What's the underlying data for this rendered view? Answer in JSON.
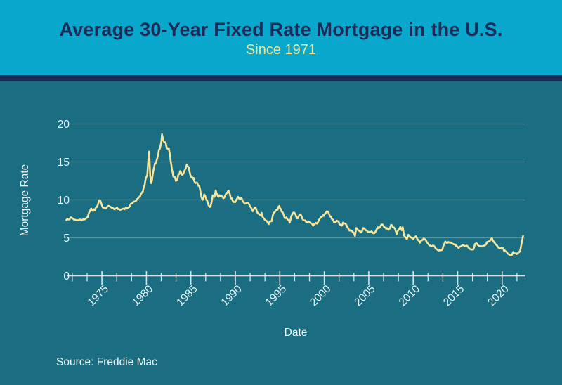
{
  "header": {
    "title": "Average 30-Year Fixed Rate Mortgage in the U.S.",
    "subtitle": "Since 1971"
  },
  "footer": {
    "source": "Source: Freddie Mac"
  },
  "colors": {
    "header_bg": "#09A7CB",
    "divider_navy": "#1F2957",
    "chart_bg": "#1B6E81",
    "line_yellow": "#F6E59C",
    "title_navy": "#1E2A58",
    "subtitle_yellow": "#EDE795",
    "axis_text": "#ECF5F8",
    "grid": "#A8CED8",
    "axis_line": "#E8F2F5"
  },
  "chart_data": {
    "type": "line",
    "title": "Average 30-Year Fixed Rate Mortgage in the U.S.",
    "subtitle": "Since 1971",
    "xlabel": "Date",
    "ylabel": "Mortgage Rate",
    "source": "Freddie Mac",
    "x_range": [
      1971,
      2022.4
    ],
    "ylim": [
      0,
      20
    ],
    "yticks": [
      0,
      5,
      10,
      15,
      20
    ],
    "xticks_major": [
      1975,
      1980,
      1985,
      1990,
      1995,
      2000,
      2005,
      2010,
      2015,
      2020
    ],
    "minor_ticks_per_major_interval": 2,
    "grid": "horizontal-only",
    "legend": "none",
    "series": [
      {
        "name": "Mortgage Rate (%)",
        "points": [
          [
            1971.0,
            7.33
          ],
          [
            1971.2,
            7.42
          ],
          [
            1971.5,
            7.7
          ],
          [
            1971.75,
            7.5
          ],
          [
            1972.0,
            7.37
          ],
          [
            1972.3,
            7.3
          ],
          [
            1972.6,
            7.4
          ],
          [
            1972.9,
            7.44
          ],
          [
            1973.1,
            7.45
          ],
          [
            1973.4,
            7.75
          ],
          [
            1973.65,
            8.5
          ],
          [
            1973.8,
            8.85
          ],
          [
            1974.0,
            8.55
          ],
          [
            1974.2,
            8.65
          ],
          [
            1974.45,
            9.1
          ],
          [
            1974.7,
            9.96
          ],
          [
            1974.9,
            9.6
          ],
          [
            1975.1,
            9.0
          ],
          [
            1975.35,
            8.85
          ],
          [
            1975.6,
            9.1
          ],
          [
            1975.85,
            9.15
          ],
          [
            1976.1,
            8.95
          ],
          [
            1976.4,
            8.75
          ],
          [
            1976.7,
            9.0
          ],
          [
            1976.9,
            8.8
          ],
          [
            1977.1,
            8.7
          ],
          [
            1977.4,
            8.85
          ],
          [
            1977.7,
            9.0
          ],
          [
            1977.9,
            8.95
          ],
          [
            1978.1,
            9.1
          ],
          [
            1978.4,
            9.55
          ],
          [
            1978.7,
            9.8
          ],
          [
            1978.95,
            10.1
          ],
          [
            1979.15,
            10.35
          ],
          [
            1979.4,
            10.8
          ],
          [
            1979.6,
            11.1
          ],
          [
            1979.8,
            11.9
          ],
          [
            1979.95,
            12.9
          ],
          [
            1980.1,
            13.3
          ],
          [
            1980.22,
            15.3
          ],
          [
            1980.3,
            16.35
          ],
          [
            1980.42,
            13.2
          ],
          [
            1980.55,
            12.2
          ],
          [
            1980.7,
            13.3
          ],
          [
            1980.85,
            14.2
          ],
          [
            1980.95,
            14.8
          ],
          [
            1981.1,
            15.0
          ],
          [
            1981.25,
            15.6
          ],
          [
            1981.4,
            16.6
          ],
          [
            1981.5,
            16.7
          ],
          [
            1981.62,
            17.3
          ],
          [
            1981.75,
            18.63
          ],
          [
            1981.85,
            18.1
          ],
          [
            1981.95,
            17.7
          ],
          [
            1982.1,
            17.6
          ],
          [
            1982.25,
            17.0
          ],
          [
            1982.4,
            16.7
          ],
          [
            1982.52,
            16.8
          ],
          [
            1982.65,
            16.0
          ],
          [
            1982.8,
            14.6
          ],
          [
            1982.95,
            13.6
          ],
          [
            1983.1,
            13.0
          ],
          [
            1983.25,
            12.8
          ],
          [
            1983.4,
            12.6
          ],
          [
            1983.6,
            13.4
          ],
          [
            1983.8,
            13.8
          ],
          [
            1983.95,
            13.4
          ],
          [
            1984.1,
            13.4
          ],
          [
            1984.3,
            13.9
          ],
          [
            1984.55,
            14.67
          ],
          [
            1984.75,
            14.3
          ],
          [
            1984.95,
            13.2
          ],
          [
            1985.1,
            13.1
          ],
          [
            1985.3,
            12.9
          ],
          [
            1985.5,
            12.2
          ],
          [
            1985.7,
            12.25
          ],
          [
            1985.95,
            11.8
          ],
          [
            1986.1,
            10.9
          ],
          [
            1986.3,
            10.0
          ],
          [
            1986.5,
            10.7
          ],
          [
            1986.7,
            10.2
          ],
          [
            1986.9,
            9.7
          ],
          [
            1987.05,
            9.2
          ],
          [
            1987.2,
            9.1
          ],
          [
            1987.45,
            10.6
          ],
          [
            1987.65,
            10.4
          ],
          [
            1987.8,
            11.26
          ],
          [
            1987.95,
            10.7
          ],
          [
            1988.1,
            10.4
          ],
          [
            1988.3,
            10.5
          ],
          [
            1988.55,
            10.4
          ],
          [
            1988.75,
            10.3
          ],
          [
            1988.95,
            10.8
          ],
          [
            1989.1,
            10.9
          ],
          [
            1989.25,
            11.2
          ],
          [
            1989.5,
            10.2
          ],
          [
            1989.7,
            9.9
          ],
          [
            1989.9,
            9.75
          ],
          [
            1990.1,
            10.0
          ],
          [
            1990.3,
            10.4
          ],
          [
            1990.55,
            10.1
          ],
          [
            1990.75,
            10.1
          ],
          [
            1990.95,
            9.7
          ],
          [
            1991.1,
            9.5
          ],
          [
            1991.3,
            9.6
          ],
          [
            1991.55,
            9.4
          ],
          [
            1991.75,
            9.0
          ],
          [
            1991.95,
            8.5
          ],
          [
            1992.1,
            8.8
          ],
          [
            1992.3,
            8.9
          ],
          [
            1992.55,
            8.2
          ],
          [
            1992.75,
            8.0
          ],
          [
            1992.95,
            8.3
          ],
          [
            1993.1,
            7.7
          ],
          [
            1993.3,
            7.4
          ],
          [
            1993.55,
            7.2
          ],
          [
            1993.75,
            6.8
          ],
          [
            1993.95,
            7.2
          ],
          [
            1994.1,
            7.2
          ],
          [
            1994.3,
            8.3
          ],
          [
            1994.55,
            8.6
          ],
          [
            1994.75,
            8.7
          ],
          [
            1994.95,
            9.2
          ],
          [
            1995.1,
            8.8
          ],
          [
            1995.3,
            8.4
          ],
          [
            1995.55,
            7.6
          ],
          [
            1995.75,
            7.7
          ],
          [
            1995.95,
            7.35
          ],
          [
            1996.1,
            7.0
          ],
          [
            1996.3,
            7.9
          ],
          [
            1996.5,
            8.3
          ],
          [
            1996.7,
            8.2
          ],
          [
            1996.9,
            7.6
          ],
          [
            1997.1,
            7.8
          ],
          [
            1997.3,
            8.1
          ],
          [
            1997.55,
            7.5
          ],
          [
            1997.75,
            7.3
          ],
          [
            1997.95,
            7.1
          ],
          [
            1998.1,
            7.05
          ],
          [
            1998.3,
            7.1
          ],
          [
            1998.55,
            6.9
          ],
          [
            1998.75,
            6.6
          ],
          [
            1998.95,
            6.85
          ],
          [
            1999.1,
            6.9
          ],
          [
            1999.3,
            7.1
          ],
          [
            1999.55,
            7.6
          ],
          [
            1999.75,
            7.8
          ],
          [
            1999.95,
            7.9
          ],
          [
            2000.1,
            8.2
          ],
          [
            2000.3,
            8.5
          ],
          [
            2000.55,
            8.1
          ],
          [
            2000.75,
            7.8
          ],
          [
            2000.95,
            7.4
          ],
          [
            2001.1,
            7.0
          ],
          [
            2001.3,
            7.1
          ],
          [
            2001.5,
            7.2
          ],
          [
            2001.7,
            6.8
          ],
          [
            2001.95,
            6.6
          ],
          [
            2002.1,
            7.0
          ],
          [
            2002.3,
            6.9
          ],
          [
            2002.55,
            6.5
          ],
          [
            2002.75,
            6.1
          ],
          [
            2002.95,
            6.0
          ],
          [
            2003.1,
            5.9
          ],
          [
            2003.3,
            5.7
          ],
          [
            2003.45,
            5.25
          ],
          [
            2003.6,
            6.3
          ],
          [
            2003.8,
            6.0
          ],
          [
            2003.95,
            5.9
          ],
          [
            2004.1,
            5.7
          ],
          [
            2004.4,
            6.3
          ],
          [
            2004.65,
            6.0
          ],
          [
            2004.9,
            5.75
          ],
          [
            2005.1,
            5.7
          ],
          [
            2005.3,
            5.85
          ],
          [
            2005.5,
            5.6
          ],
          [
            2005.75,
            5.8
          ],
          [
            2005.95,
            6.3
          ],
          [
            2006.1,
            6.25
          ],
          [
            2006.3,
            6.5
          ],
          [
            2006.55,
            6.76
          ],
          [
            2006.75,
            6.4
          ],
          [
            2006.95,
            6.2
          ],
          [
            2007.1,
            6.2
          ],
          [
            2007.3,
            6.15
          ],
          [
            2007.5,
            6.7
          ],
          [
            2007.7,
            6.4
          ],
          [
            2007.95,
            6.2
          ],
          [
            2008.05,
            5.8
          ],
          [
            2008.15,
            5.5
          ],
          [
            2008.3,
            6.0
          ],
          [
            2008.55,
            6.45
          ],
          [
            2008.7,
            6.0
          ],
          [
            2008.82,
            6.4
          ],
          [
            2008.95,
            5.3
          ],
          [
            2009.1,
            5.1
          ],
          [
            2009.3,
            4.85
          ],
          [
            2009.45,
            5.4
          ],
          [
            2009.6,
            5.2
          ],
          [
            2009.8,
            5.0
          ],
          [
            2009.95,
            4.9
          ],
          [
            2010.1,
            5.0
          ],
          [
            2010.3,
            5.2
          ],
          [
            2010.55,
            4.7
          ],
          [
            2010.75,
            4.35
          ],
          [
            2010.95,
            4.7
          ],
          [
            2011.1,
            4.8
          ],
          [
            2011.25,
            4.85
          ],
          [
            2011.5,
            4.5
          ],
          [
            2011.75,
            4.1
          ],
          [
            2011.95,
            3.95
          ],
          [
            2012.1,
            3.9
          ],
          [
            2012.3,
            3.95
          ],
          [
            2012.55,
            3.55
          ],
          [
            2012.75,
            3.4
          ],
          [
            2012.95,
            3.35
          ],
          [
            2013.1,
            3.35
          ],
          [
            2013.3,
            3.55
          ],
          [
            2013.45,
            4.1
          ],
          [
            2013.6,
            4.5
          ],
          [
            2013.8,
            4.3
          ],
          [
            2013.95,
            4.45
          ],
          [
            2014.1,
            4.4
          ],
          [
            2014.3,
            4.3
          ],
          [
            2014.55,
            4.15
          ],
          [
            2014.75,
            4.1
          ],
          [
            2014.95,
            3.85
          ],
          [
            2015.1,
            3.65
          ],
          [
            2015.3,
            3.85
          ],
          [
            2015.55,
            4.05
          ],
          [
            2015.75,
            3.9
          ],
          [
            2015.95,
            3.95
          ],
          [
            2016.1,
            3.9
          ],
          [
            2016.3,
            3.6
          ],
          [
            2016.55,
            3.45
          ],
          [
            2016.75,
            3.45
          ],
          [
            2016.95,
            4.2
          ],
          [
            2017.1,
            4.3
          ],
          [
            2017.3,
            4.0
          ],
          [
            2017.55,
            3.9
          ],
          [
            2017.75,
            3.85
          ],
          [
            2017.95,
            3.95
          ],
          [
            2018.1,
            4.05
          ],
          [
            2018.3,
            4.45
          ],
          [
            2018.5,
            4.55
          ],
          [
            2018.72,
            4.72
          ],
          [
            2018.85,
            4.94
          ],
          [
            2018.95,
            4.65
          ],
          [
            2019.1,
            4.4
          ],
          [
            2019.3,
            4.1
          ],
          [
            2019.55,
            3.75
          ],
          [
            2019.75,
            3.6
          ],
          [
            2019.95,
            3.72
          ],
          [
            2020.05,
            3.65
          ],
          [
            2020.2,
            3.3
          ],
          [
            2020.4,
            3.2
          ],
          [
            2020.6,
            2.95
          ],
          [
            2020.8,
            2.8
          ],
          [
            2020.95,
            2.68
          ],
          [
            2021.1,
            2.75
          ],
          [
            2021.25,
            3.15
          ],
          [
            2021.45,
            2.95
          ],
          [
            2021.6,
            2.85
          ],
          [
            2021.75,
            2.9
          ],
          [
            2021.9,
            3.1
          ],
          [
            2022.0,
            3.25
          ],
          [
            2022.1,
            3.75
          ],
          [
            2022.2,
            4.4
          ],
          [
            2022.3,
            5.0
          ],
          [
            2022.35,
            5.27
          ]
        ]
      }
    ]
  }
}
